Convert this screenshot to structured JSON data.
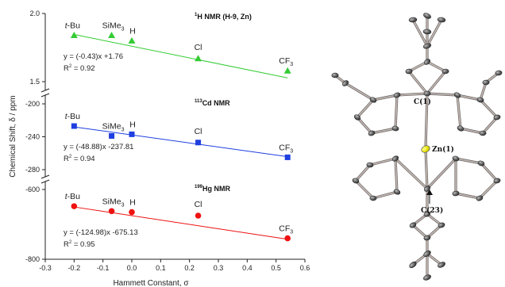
{
  "chart_data": [
    {
      "type": "scatter",
      "title_mass": "1",
      "title": "H NMR (H-9, Zn)",
      "x": [
        -0.2,
        -0.07,
        0.0,
        0.23,
        0.54
      ],
      "point_labels": [
        "t-Bu",
        "SiMe3",
        "H",
        "Cl",
        "CF3"
      ],
      "y": [
        1.84,
        1.84,
        1.8,
        1.67,
        1.58
      ],
      "yticks": [
        1.5,
        2.0
      ],
      "ylim": [
        1.5,
        2.0
      ],
      "fit": {
        "slope": -0.43,
        "intercept": 1.76
      },
      "equation": "y = (-0.43)x +1.76",
      "r2_label": "R",
      "r2_value": " = 0.92",
      "color": "#33cc33",
      "marker": "triangle"
    },
    {
      "type": "scatter",
      "title_mass": "113",
      "title": "Cd NMR",
      "x": [
        -0.2,
        -0.07,
        0.0,
        0.23,
        0.54
      ],
      "point_labels": [
        "t-Bu",
        "SiMe3",
        "H",
        "Cl",
        "CF3"
      ],
      "y": [
        -227,
        -239,
        -237,
        -247,
        -265
      ],
      "yticks": [
        -200,
        -240,
        -280
      ],
      "ylim": [
        -280,
        -200
      ],
      "fit": {
        "slope": -48.88,
        "intercept": -237.81
      },
      "equation": "y = (-48.88)x -237.81",
      "r2_label": "R",
      "r2_value": " = 0.94",
      "color": "#1f3fe0",
      "marker": "square"
    },
    {
      "type": "scatter",
      "title_mass": "199",
      "title": "Hg NMR",
      "x": [
        -0.2,
        -0.07,
        0.0,
        0.23,
        0.54
      ],
      "point_labels": [
        "t-Bu",
        "SiMe3",
        "H",
        "Cl",
        "CF3"
      ],
      "y": [
        -648,
        -662,
        -665,
        -675,
        -740
      ],
      "yticks": [
        -600,
        -800
      ],
      "ylim": [
        -800,
        -600
      ],
      "fit": {
        "slope": -124.98,
        "intercept": -675.13
      },
      "equation": "y = (-124.98)x -675.13",
      "r2_label": "R",
      "r2_value": " = 0.95",
      "color": "#ee1111",
      "marker": "circle"
    }
  ],
  "shared_x": {
    "xlim": [
      -0.3,
      0.6
    ],
    "xticks": [
      -0.3,
      -0.2,
      -0.1,
      0.0,
      0.1,
      0.2,
      0.3,
      0.4,
      0.5,
      0.6
    ],
    "xlabel": "Hammett Constant, σ"
  },
  "ylabel": "Chemical Shift, δ / ppm",
  "structure_labels": {
    "c1": "C(1)",
    "zn1": "Zn(1)",
    "c23": "C(23)"
  }
}
